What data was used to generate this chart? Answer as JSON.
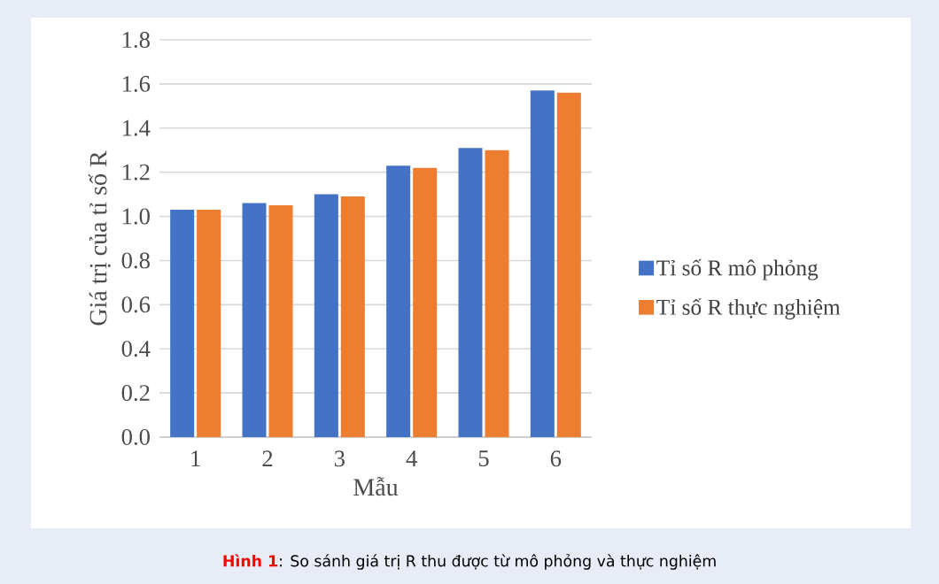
{
  "chart_data": {
    "type": "bar",
    "xlabel": "Mẫu",
    "ylabel": "Giá trị của tỉ số R",
    "categories": [
      "1",
      "2",
      "3",
      "4",
      "5",
      "6"
    ],
    "series": [
      {
        "name": "Tỉ số R mô phỏng",
        "color": "#4472c4",
        "values": [
          1.03,
          1.06,
          1.1,
          1.23,
          1.31,
          1.57
        ]
      },
      {
        "name": "Tỉ số R thực nghiệm",
        "color": "#ed7d31",
        "values": [
          1.03,
          1.05,
          1.09,
          1.22,
          1.3,
          1.56
        ]
      }
    ],
    "ylim": [
      0,
      1.8
    ],
    "yticks": [
      {
        "value": 0,
        "label": "0.0"
      },
      {
        "value": 0.2,
        "label": "0.2"
      },
      {
        "value": 0.4,
        "label": "0.4"
      },
      {
        "value": 0.6,
        "label": "0.6"
      },
      {
        "value": 0.8,
        "label": "0.8"
      },
      {
        "value": 1,
        "label": "1.0"
      },
      {
        "value": 1.2,
        "label": "1.2"
      },
      {
        "value": 1.4,
        "label": "1.4"
      },
      {
        "value": 1.6,
        "label": "1.6"
      },
      {
        "value": 1.8,
        "label": "1.8"
      }
    ],
    "grid": "y",
    "legend": "right",
    "annotations": [
      "Hình 1",
      ": So sánh giá trị R thu được từ mô phỏng và thực nghiệm"
    ]
  }
}
